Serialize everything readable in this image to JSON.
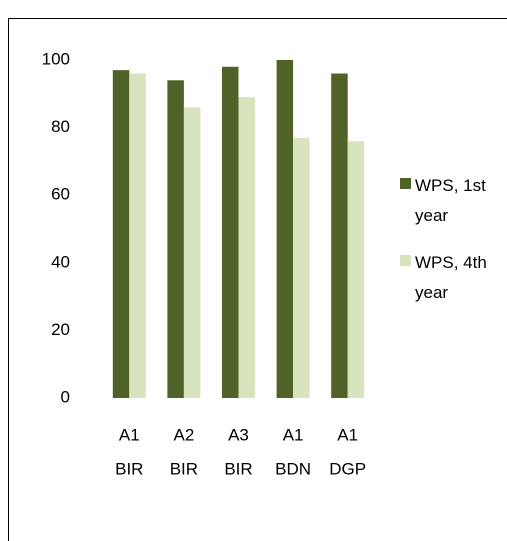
{
  "chart_data": {
    "type": "bar",
    "categories": [
      [
        "A1",
        "BIR"
      ],
      [
        "A2",
        "BIR"
      ],
      [
        "A3",
        "BIR"
      ],
      [
        "A1",
        "BDN"
      ],
      [
        "A1",
        "DGP"
      ]
    ],
    "series": [
      {
        "name": "WPS, 1st year",
        "color": "#4f6228",
        "values": [
          97,
          94,
          98,
          100,
          96
        ]
      },
      {
        "name": "WPS, 4th year",
        "color": "#d7e4bd",
        "values": [
          96,
          86,
          89,
          77,
          76
        ]
      }
    ],
    "ylim": [
      0,
      100
    ],
    "yticks": [
      0,
      20,
      40,
      60,
      80,
      100
    ],
    "grid": false,
    "legend": "right"
  }
}
